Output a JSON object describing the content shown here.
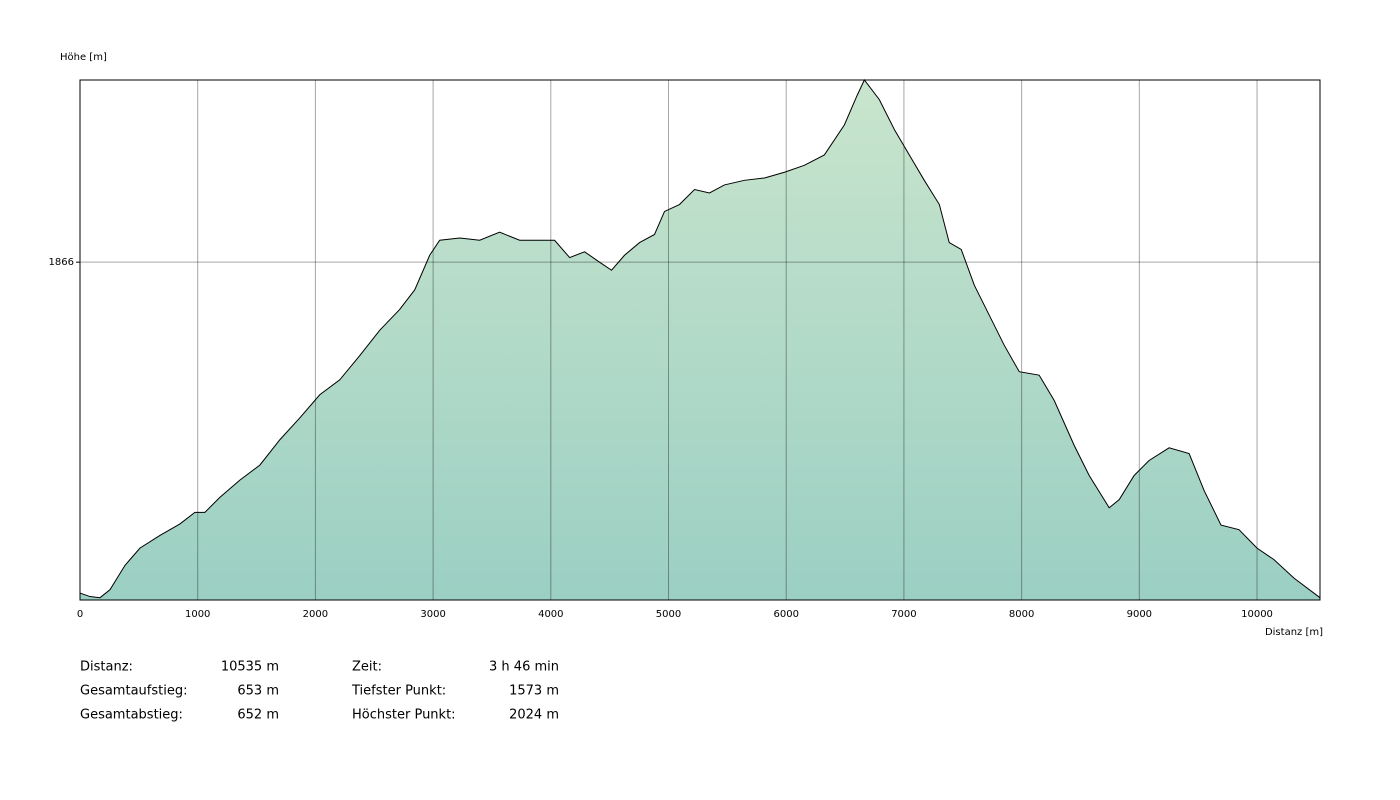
{
  "chart_data": {
    "type": "area",
    "y_label": "Höhe [m]",
    "x_label": "Distanz [m]",
    "x": [
      0,
      85,
      170,
      255,
      382,
      509,
      679,
      849,
      976,
      1061,
      1188,
      1358,
      1528,
      1698,
      1868,
      2037,
      2207,
      2377,
      2547,
      2716,
      2844,
      2971,
      3056,
      3226,
      3396,
      3565,
      3735,
      3905,
      4032,
      4160,
      4287,
      4414,
      4516,
      4626,
      4754,
      4881,
      4966,
      5093,
      5221,
      5348,
      5475,
      5645,
      5815,
      5985,
      6154,
      6324,
      6494,
      6604,
      6664,
      6791,
      6919,
      7046,
      7173,
      7301,
      7385,
      7487,
      7598,
      7725,
      7852,
      7980,
      8149,
      8277,
      8447,
      8574,
      8744,
      8829,
      8956,
      9083,
      9253,
      9423,
      9550,
      9694,
      9847,
      10000,
      10144,
      10314,
      10535
    ],
    "values": [
      1579,
      1576,
      1575,
      1582,
      1603,
      1618,
      1629,
      1639,
      1649,
      1649,
      1662,
      1677,
      1690,
      1712,
      1731,
      1751,
      1764,
      1785,
      1807,
      1825,
      1842,
      1872,
      1885,
      1887,
      1885,
      1892,
      1885,
      1885,
      1885,
      1870,
      1875,
      1866,
      1859,
      1872,
      1883,
      1890,
      1910,
      1916,
      1929,
      1926,
      1933,
      1937,
      1939,
      1944,
      1950,
      1959,
      1985,
      2011,
      2024,
      2007,
      1981,
      1959,
      1937,
      1916,
      1883,
      1877,
      1846,
      1820,
      1794,
      1771,
      1768,
      1746,
      1707,
      1681,
      1653,
      1660,
      1681,
      1694,
      1705,
      1700,
      1668,
      1638,
      1634,
      1618,
      1608,
      1592,
      1575
    ],
    "color_top": "#c9e5cd",
    "color_bottom": "#9bcfc3",
    "line_color": "#000000",
    "xlim": [
      0,
      10535
    ],
    "xticks": [
      0,
      1000,
      2000,
      3000,
      4000,
      5000,
      6000,
      7000,
      8000,
      9000,
      10000
    ],
    "ylim": [
      1573,
      2024
    ],
    "yticks": [
      1866
    ],
    "grid": true
  },
  "stats": [
    [
      {
        "label": "Distanz:",
        "value": "10535 m"
      },
      {
        "label": "Zeit:",
        "value": "3 h 46 min"
      }
    ],
    [
      {
        "label": "Gesamtaufstieg:",
        "value": "653 m"
      },
      {
        "label": "Tiefster Punkt:",
        "value": "1573 m"
      }
    ],
    [
      {
        "label": "Gesamtabstieg:",
        "value": "652 m"
      },
      {
        "label": "Höchster Punkt:",
        "value": "2024 m"
      }
    ]
  ]
}
